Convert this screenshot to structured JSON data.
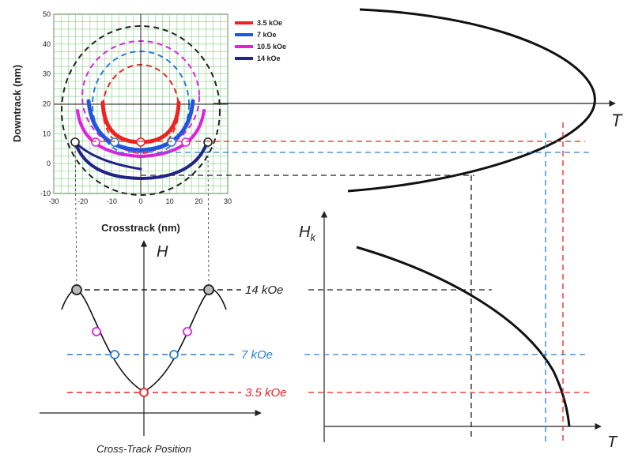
{
  "inset_plot": {
    "xlabel": "Crosstrack (nm)",
    "ylabel": "Downtrack (nm)",
    "xlim": [
      -30,
      30
    ],
    "ylim": [
      -10,
      50
    ],
    "x_ticks": [
      "-30",
      "-20",
      "-10",
      "0",
      "10",
      "20",
      "30"
    ],
    "y_ticks": [
      "50",
      "40",
      "30",
      "20",
      "10",
      "0",
      "-10"
    ],
    "legend": [
      {
        "label": "3.5 kOe",
        "color": "#ee2222"
      },
      {
        "label": "7 kOe",
        "color": "#2255dd"
      },
      {
        "label": "10.5 kOe",
        "color": "#dd22dd"
      },
      {
        "label": "14 kOe",
        "color": "#222288"
      }
    ]
  },
  "top_right": {
    "axis_label": "T"
  },
  "bottom_left": {
    "axis_label": "H",
    "xlabel": "Cross-Track Position",
    "levels": [
      {
        "label": "14 kOe",
        "color": "#222222"
      },
      {
        "label": "7 kOe",
        "color": "#2a7fd0"
      },
      {
        "label": "3.5 kOe",
        "color": "#ee2222"
      }
    ]
  },
  "bottom_right": {
    "y_label_main": "H",
    "y_label_sub": "k",
    "x_label": "T"
  },
  "colors": {
    "red_guide": "#ee2222",
    "blue_guide": "#2a7fd0",
    "black_guide": "#222222",
    "magenta": "#dd22dd",
    "grid": "#7fd07f"
  }
}
